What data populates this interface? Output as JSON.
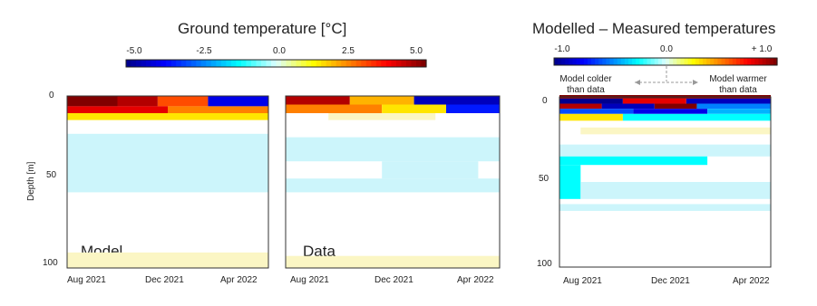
{
  "chart_data": [
    {
      "type": "heatmap",
      "panel_label": "Model",
      "title": "Ground temperature [°C]",
      "ylabel": "Depth [m]",
      "x_ticks": [
        "Aug 2021",
        "Dec 2021",
        "Apr 2022"
      ],
      "y_ticks": [
        "0",
        "50",
        "100"
      ],
      "ylim": [
        0,
        100
      ],
      "y_reversed": true,
      "colorbar": {
        "ticks": [
          "-5.0",
          "-2.5",
          "0.0",
          "2.5",
          "5.0"
        ],
        "range": [
          -5,
          5
        ]
      },
      "bands": [
        {
          "depth": [
            0,
            6
          ],
          "x": [
            0.0,
            0.25
          ],
          "value": 5.0
        },
        {
          "depth": [
            0,
            6
          ],
          "x": [
            0.25,
            0.45
          ],
          "value": 4.5
        },
        {
          "depth": [
            0,
            6
          ],
          "x": [
            0.45,
            0.7
          ],
          "value": 3.0
        },
        {
          "depth": [
            0,
            6
          ],
          "x": [
            0.7,
            1.0
          ],
          "value": -4.0
        },
        {
          "depth": [
            6,
            10
          ],
          "x": [
            0.0,
            0.5
          ],
          "value": 4.0
        },
        {
          "depth": [
            6,
            10
          ],
          "x": [
            0.5,
            1.0
          ],
          "value": 2.5
        },
        {
          "depth": [
            10,
            14
          ],
          "x": [
            0.0,
            1.0
          ],
          "value": 1.5
        },
        {
          "depth": [
            22,
            56
          ],
          "x": [
            0.0,
            1.0
          ],
          "value": -0.7
        },
        {
          "depth": [
            91,
            100
          ],
          "x": [
            0.0,
            1.0
          ],
          "value": 0.8
        }
      ]
    },
    {
      "type": "heatmap",
      "panel_label": "Data",
      "x_ticks": [
        "Aug 2021",
        "Dec 2021",
        "Apr 2022"
      ],
      "ylim": [
        0,
        100
      ],
      "y_reversed": true,
      "bands": [
        {
          "depth": [
            0,
            5
          ],
          "x": [
            0.0,
            0.3
          ],
          "value": 4.5
        },
        {
          "depth": [
            0,
            5
          ],
          "x": [
            0.3,
            0.6
          ],
          "value": 2.0
        },
        {
          "depth": [
            0,
            5
          ],
          "x": [
            0.6,
            1.0
          ],
          "value": -4.5
        },
        {
          "depth": [
            5,
            10
          ],
          "x": [
            0.0,
            0.45
          ],
          "value": 2.5
        },
        {
          "depth": [
            5,
            10
          ],
          "x": [
            0.45,
            0.75
          ],
          "value": 1.5
        },
        {
          "depth": [
            5,
            10
          ],
          "x": [
            0.75,
            1.0
          ],
          "value": -3.5
        },
        {
          "depth": [
            10,
            14
          ],
          "x": [
            0.2,
            0.7
          ],
          "value": 1.0
        },
        {
          "depth": [
            24,
            38
          ],
          "x": [
            0.0,
            1.0
          ],
          "value": -0.7
        },
        {
          "depth": [
            38,
            48
          ],
          "x": [
            0.45,
            0.9
          ],
          "value": -0.4
        },
        {
          "depth": [
            48,
            56
          ],
          "x": [
            0.0,
            1.0
          ],
          "value": -0.7
        },
        {
          "depth": [
            93,
            100
          ],
          "x": [
            0.0,
            1.0
          ],
          "value": 0.8
        }
      ]
    },
    {
      "type": "heatmap",
      "title": "Modelled – Measured temperatures",
      "x_ticks": [
        "Aug 2021",
        "Dec 2021",
        "Apr 2022"
      ],
      "y_ticks": [
        "0",
        "50",
        "100"
      ],
      "ylim": [
        0,
        100
      ],
      "y_reversed": true,
      "colorbar": {
        "ticks": [
          "-1.0",
          "0.0",
          "+ 1.0"
        ],
        "range": [
          -1,
          1
        ]
      },
      "annotations": {
        "left": [
          "Model colder",
          "than data"
        ],
        "right": [
          "Model warmer",
          "than data"
        ]
      },
      "bands": [
        {
          "depth": [
            -2,
            1
          ],
          "x": [
            0.0,
            1.0
          ],
          "value": 1.0
        },
        {
          "depth": [
            1,
            4
          ],
          "x": [
            0.0,
            0.3
          ],
          "value": -1.0
        },
        {
          "depth": [
            1,
            4
          ],
          "x": [
            0.3,
            0.6
          ],
          "value": 0.8
        },
        {
          "depth": [
            1,
            4
          ],
          "x": [
            0.6,
            1.0
          ],
          "value": -0.9
        },
        {
          "depth": [
            4,
            7
          ],
          "x": [
            0.0,
            0.2
          ],
          "value": 0.9
        },
        {
          "depth": [
            4,
            7
          ],
          "x": [
            0.2,
            0.45
          ],
          "value": -0.9
        },
        {
          "depth": [
            4,
            7
          ],
          "x": [
            0.45,
            0.65
          ],
          "value": 1.0
        },
        {
          "depth": [
            4,
            7
          ],
          "x": [
            0.65,
            1.0
          ],
          "value": -0.5
        },
        {
          "depth": [
            7,
            10
          ],
          "x": [
            0.0,
            0.35
          ],
          "value": -0.6
        },
        {
          "depth": [
            7,
            10
          ],
          "x": [
            0.35,
            0.7
          ],
          "value": -0.8
        },
        {
          "depth": [
            7,
            10
          ],
          "x": [
            0.7,
            1.0
          ],
          "value": -0.4
        },
        {
          "depth": [
            10,
            14
          ],
          "x": [
            0.0,
            0.3
          ],
          "value": 0.3
        },
        {
          "depth": [
            10,
            14
          ],
          "x": [
            0.3,
            1.0
          ],
          "value": -0.25
        },
        {
          "depth": [
            18,
            22
          ],
          "x": [
            0.1,
            1.0
          ],
          "value": 0.15
        },
        {
          "depth": [
            28,
            35
          ],
          "x": [
            0.0,
            1.0
          ],
          "value": -0.15
        },
        {
          "depth": [
            35,
            40
          ],
          "x": [
            0.0,
            0.7
          ],
          "value": -0.25
        },
        {
          "depth": [
            40,
            60
          ],
          "x": [
            0.0,
            0.1
          ],
          "value": -0.25
        },
        {
          "depth": [
            50,
            60
          ],
          "x": [
            0.1,
            1.0
          ],
          "value": -0.15
        },
        {
          "depth": [
            63,
            67
          ],
          "x": [
            0.0,
            1.0
          ],
          "value": -0.15
        }
      ]
    }
  ]
}
